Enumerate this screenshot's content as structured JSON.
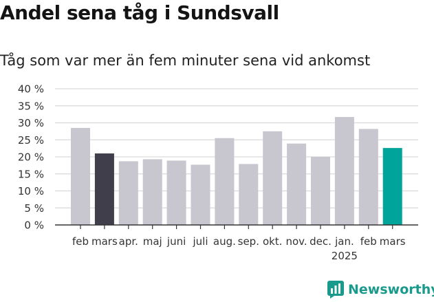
{
  "title": "Andel sena tåg i Sundsvall",
  "subtitle": "Tåg som var mer än fem minuter sena vid ankomst",
  "brand": {
    "name": "Newsworthy",
    "icon": "newsworthy-logo-icon"
  },
  "colors": {
    "default": "#c8c6cf",
    "highlight_prev": "#403e4a",
    "highlight_current": "#00a49a",
    "grid": "#d9d9d9",
    "axis": "#333333"
  },
  "chart_data": {
    "type": "bar",
    "title": "Andel sena tåg i Sundsvall",
    "subtitle": "Tåg som var mer än fem minuter sena vid ankomst",
    "categories": [
      "feb",
      "mars",
      "apr.",
      "maj",
      "juni",
      "juli",
      "aug.",
      "sep.",
      "okt.",
      "nov.",
      "dec.",
      "jan.",
      "feb",
      "mars"
    ],
    "year_labels": [
      "",
      "",
      "",
      "",
      "",
      "",
      "",
      "",
      "",
      "",
      "",
      "2025",
      "",
      ""
    ],
    "values": [
      28.5,
      21.0,
      18.7,
      19.3,
      18.9,
      17.7,
      25.5,
      17.9,
      27.5,
      23.9,
      20.0,
      31.7,
      28.2,
      22.6
    ],
    "highlight": [
      "default",
      "highlight_prev",
      "default",
      "default",
      "default",
      "default",
      "default",
      "default",
      "default",
      "default",
      "default",
      "default",
      "default",
      "highlight_current"
    ],
    "ylim": [
      0,
      40
    ],
    "yticks": [
      "0 %",
      "5 %",
      "10 %",
      "15 %",
      "20 %",
      "25 %",
      "30 %",
      "35 %",
      "40 %"
    ],
    "ytick_values": [
      0,
      5,
      10,
      15,
      20,
      25,
      30,
      35,
      40
    ],
    "grid": true,
    "xlabel": "",
    "ylabel": ""
  }
}
